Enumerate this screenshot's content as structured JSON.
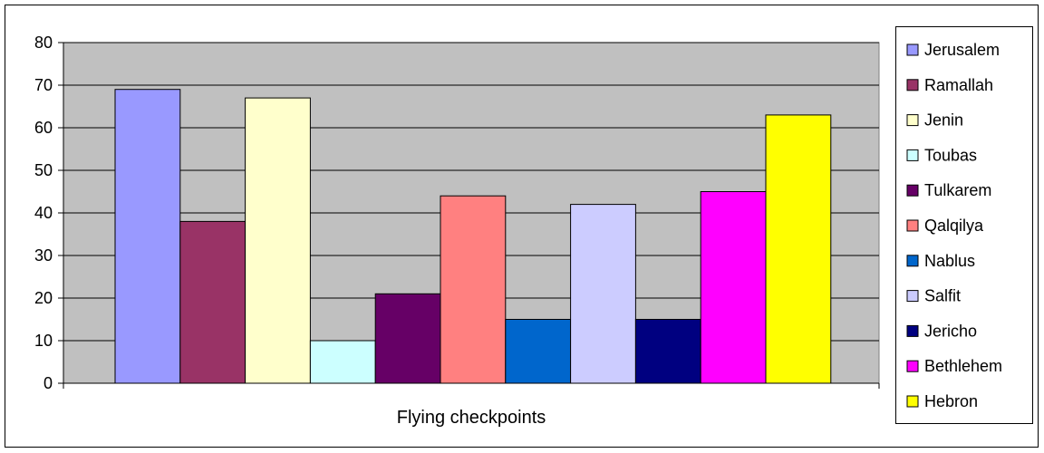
{
  "chart_data": {
    "type": "bar",
    "categories": [
      "Flying checkpoints"
    ],
    "series": [
      {
        "name": "Jerusalem",
        "values": [
          69
        ],
        "color": "#9999FF"
      },
      {
        "name": "Ramallah",
        "values": [
          38
        ],
        "color": "#993366"
      },
      {
        "name": "Jenin",
        "values": [
          67
        ],
        "color": "#FFFFCC"
      },
      {
        "name": "Toubas",
        "values": [
          10
        ],
        "color": "#CCFFFF"
      },
      {
        "name": "Tulkarem",
        "values": [
          21
        ],
        "color": "#660066"
      },
      {
        "name": "Qalqilya",
        "values": [
          44
        ],
        "color": "#FF8080"
      },
      {
        "name": "Nablus",
        "values": [
          15
        ],
        "color": "#0066CC"
      },
      {
        "name": "Salfit",
        "values": [
          42
        ],
        "color": "#CCCCFF"
      },
      {
        "name": "Jericho",
        "values": [
          15
        ],
        "color": "#000080"
      },
      {
        "name": "Bethlehem",
        "values": [
          45
        ],
        "color": "#FF00FF"
      },
      {
        "name": "Hebron",
        "values": [
          63
        ],
        "color": "#FFFF00"
      }
    ],
    "ylim": [
      0,
      80
    ],
    "yticks": [
      0,
      10,
      20,
      30,
      40,
      50,
      60,
      70,
      80
    ],
    "grid": true,
    "plot_background": "#C0C0C0",
    "legend_position": "right"
  }
}
